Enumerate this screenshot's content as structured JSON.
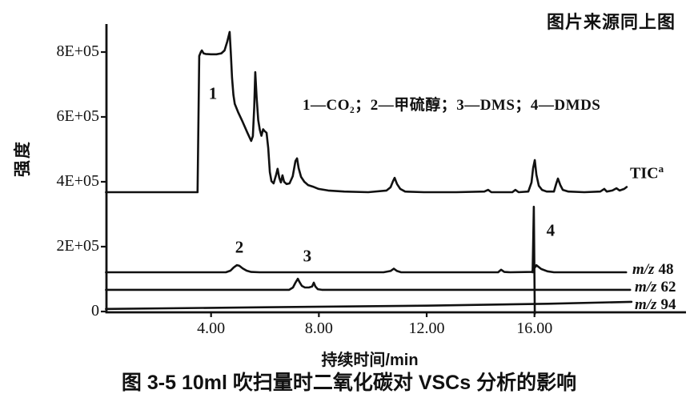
{
  "figure": {
    "source_note": "图片来源同上图",
    "caption": "图 3-5  10ml 吹扫量时二氧化碳对 VSCs 分析的影响"
  },
  "colors": {
    "ink": "#111111",
    "background": "#ffffff"
  },
  "chart_data": {
    "type": "line",
    "title": "图 3-5 10ml吹扫量时二氧化碳对VSCs分析的影响",
    "xlabel": "持续时间/min",
    "ylabel": "强度",
    "xlim": [
      0,
      21.6
    ],
    "ylim": [
      -10000,
      891000
    ],
    "grid": false,
    "legend_text": "1—CO₂；2—甲硫醇；3—DMS；4—DMDS",
    "x_ticks": [
      {
        "value": 4,
        "label": "4.00"
      },
      {
        "value": 8,
        "label": "8.00"
      },
      {
        "value": 12,
        "label": "12.00"
      },
      {
        "value": 16,
        "label": "16.00"
      }
    ],
    "y_ticks": [
      {
        "value": 800000,
        "label": "8E+05"
      },
      {
        "value": 600000,
        "label": "6E+05"
      },
      {
        "value": 400000,
        "label": "4E+05"
      },
      {
        "value": 200000,
        "label": "2E+05"
      },
      {
        "value": 0,
        "label": "0"
      }
    ],
    "peak_annotations": [
      {
        "label": "1",
        "compound": "CO₂",
        "x": 4.07,
        "y": 672000
      },
      {
        "label": "2",
        "compound": "甲硫醇",
        "x": 5.05,
        "y": 198000
      },
      {
        "label": "3",
        "compound": "DMS",
        "x": 7.57,
        "y": 170000
      },
      {
        "label": "4",
        "compound": "DMDS",
        "x": 16.6,
        "y": 249000
      }
    ],
    "series": [
      {
        "id": "tic",
        "label": "TIC",
        "label_sup": "a",
        "points": [
          [
            0.1,
            368000
          ],
          [
            3.5,
            368000
          ],
          [
            3.56,
            788000
          ],
          [
            3.62,
            800000
          ],
          [
            3.66,
            805000
          ],
          [
            3.72,
            796000
          ],
          [
            3.8,
            794000
          ],
          [
            4.0,
            793000
          ],
          [
            4.2,
            793000
          ],
          [
            4.38,
            796000
          ],
          [
            4.5,
            805000
          ],
          [
            4.6,
            832000
          ],
          [
            4.69,
            862000
          ],
          [
            4.73,
            800000
          ],
          [
            4.78,
            720000
          ],
          [
            4.83,
            668000
          ],
          [
            4.88,
            640000
          ],
          [
            5.0,
            615000
          ],
          [
            5.17,
            585000
          ],
          [
            5.35,
            551000
          ],
          [
            5.49,
            526000
          ],
          [
            5.55,
            541000
          ],
          [
            5.6,
            630000
          ],
          [
            5.64,
            738000
          ],
          [
            5.69,
            660000
          ],
          [
            5.75,
            590000
          ],
          [
            5.81,
            560000
          ],
          [
            5.87,
            542000
          ],
          [
            5.93,
            562000
          ],
          [
            5.99,
            556000
          ],
          [
            6.06,
            551000
          ],
          [
            6.12,
            504000
          ],
          [
            6.18,
            430000
          ],
          [
            6.24,
            402000
          ],
          [
            6.32,
            395000
          ],
          [
            6.41,
            420000
          ],
          [
            6.47,
            440000
          ],
          [
            6.53,
            412000
          ],
          [
            6.59,
            398000
          ],
          [
            6.65,
            420000
          ],
          [
            6.71,
            400000
          ],
          [
            6.8,
            393000
          ],
          [
            6.91,
            395000
          ],
          [
            7.03,
            417000
          ],
          [
            7.13,
            464000
          ],
          [
            7.19,
            472000
          ],
          [
            7.25,
            442000
          ],
          [
            7.34,
            415000
          ],
          [
            7.46,
            400000
          ],
          [
            7.6,
            390000
          ],
          [
            7.78,
            385000
          ],
          [
            7.99,
            378000
          ],
          [
            8.35,
            373000
          ],
          [
            8.94,
            370000
          ],
          [
            9.83,
            368000
          ],
          [
            10.51,
            373000
          ],
          [
            10.66,
            383000
          ],
          [
            10.75,
            402000
          ],
          [
            10.81,
            412000
          ],
          [
            10.9,
            393000
          ],
          [
            11.02,
            378000
          ],
          [
            11.2,
            370000
          ],
          [
            11.9,
            368000
          ],
          [
            13.1,
            368000
          ],
          [
            14.14,
            370000
          ],
          [
            14.28,
            375000
          ],
          [
            14.4,
            368000
          ],
          [
            15.18,
            368000
          ],
          [
            15.29,
            375000
          ],
          [
            15.41,
            368000
          ],
          [
            15.77,
            370000
          ],
          [
            15.89,
            398000
          ],
          [
            15.95,
            442000
          ],
          [
            16.01,
            467000
          ],
          [
            16.07,
            422000
          ],
          [
            16.16,
            388000
          ],
          [
            16.28,
            375000
          ],
          [
            16.45,
            370000
          ],
          [
            16.72,
            370000
          ],
          [
            16.81,
            395000
          ],
          [
            16.87,
            410000
          ],
          [
            16.96,
            390000
          ],
          [
            17.05,
            375000
          ],
          [
            17.26,
            370000
          ],
          [
            17.85,
            368000
          ],
          [
            18.44,
            370000
          ],
          [
            18.59,
            378000
          ],
          [
            18.68,
            370000
          ],
          [
            18.89,
            373000
          ],
          [
            19.04,
            380000
          ],
          [
            19.16,
            373000
          ],
          [
            19.33,
            378000
          ],
          [
            19.42,
            384000
          ]
        ]
      },
      {
        "id": "mz48",
        "label_prefix": "m/z",
        "label_value": "48",
        "points": [
          [
            0.1,
            121000
          ],
          [
            4.55,
            121000
          ],
          [
            4.72,
            126000
          ],
          [
            4.84,
            136000
          ],
          [
            4.96,
            143000
          ],
          [
            5.05,
            141000
          ],
          [
            5.17,
            133000
          ],
          [
            5.32,
            126000
          ],
          [
            5.49,
            122000
          ],
          [
            5.8,
            121000
          ],
          [
            10.4,
            121000
          ],
          [
            10.66,
            125000
          ],
          [
            10.78,
            132000
          ],
          [
            10.9,
            125000
          ],
          [
            11.05,
            121000
          ],
          [
            14.65,
            121000
          ],
          [
            14.76,
            129000
          ],
          [
            14.88,
            122000
          ],
          [
            15.1,
            121000
          ],
          [
            15.9,
            122000
          ],
          [
            16.07,
            143000
          ],
          [
            16.25,
            131000
          ],
          [
            16.48,
            124000
          ],
          [
            16.72,
            121000
          ],
          [
            19.4,
            121000
          ]
        ]
      },
      {
        "id": "mz62",
        "label_prefix": "m/z",
        "label_value": "62",
        "points": [
          [
            0.1,
            67000
          ],
          [
            6.9,
            67000
          ],
          [
            7.04,
            74000
          ],
          [
            7.13,
            89000
          ],
          [
            7.22,
            101000
          ],
          [
            7.28,
            91000
          ],
          [
            7.37,
            79000
          ],
          [
            7.48,
            74000
          ],
          [
            7.63,
            74000
          ],
          [
            7.75,
            77000
          ],
          [
            7.81,
            89000
          ],
          [
            7.87,
            77000
          ],
          [
            7.96,
            69000
          ],
          [
            8.11,
            67000
          ],
          [
            19.55,
            67000
          ]
        ]
      },
      {
        "id": "mz94",
        "label_prefix": "m/z",
        "label_value": "94",
        "points": [
          [
            0.1,
            8000
          ],
          [
            6.0,
            13000
          ],
          [
            12.0,
            18000
          ],
          [
            16.5,
            24000
          ],
          [
            19.6,
            30000
          ]
        ]
      },
      {
        "id": "peak4_spike",
        "label": "",
        "points": [
          [
            15.93,
            121000
          ],
          [
            15.975,
            323000
          ],
          [
            16.01,
            -7000
          ]
        ]
      }
    ]
  }
}
